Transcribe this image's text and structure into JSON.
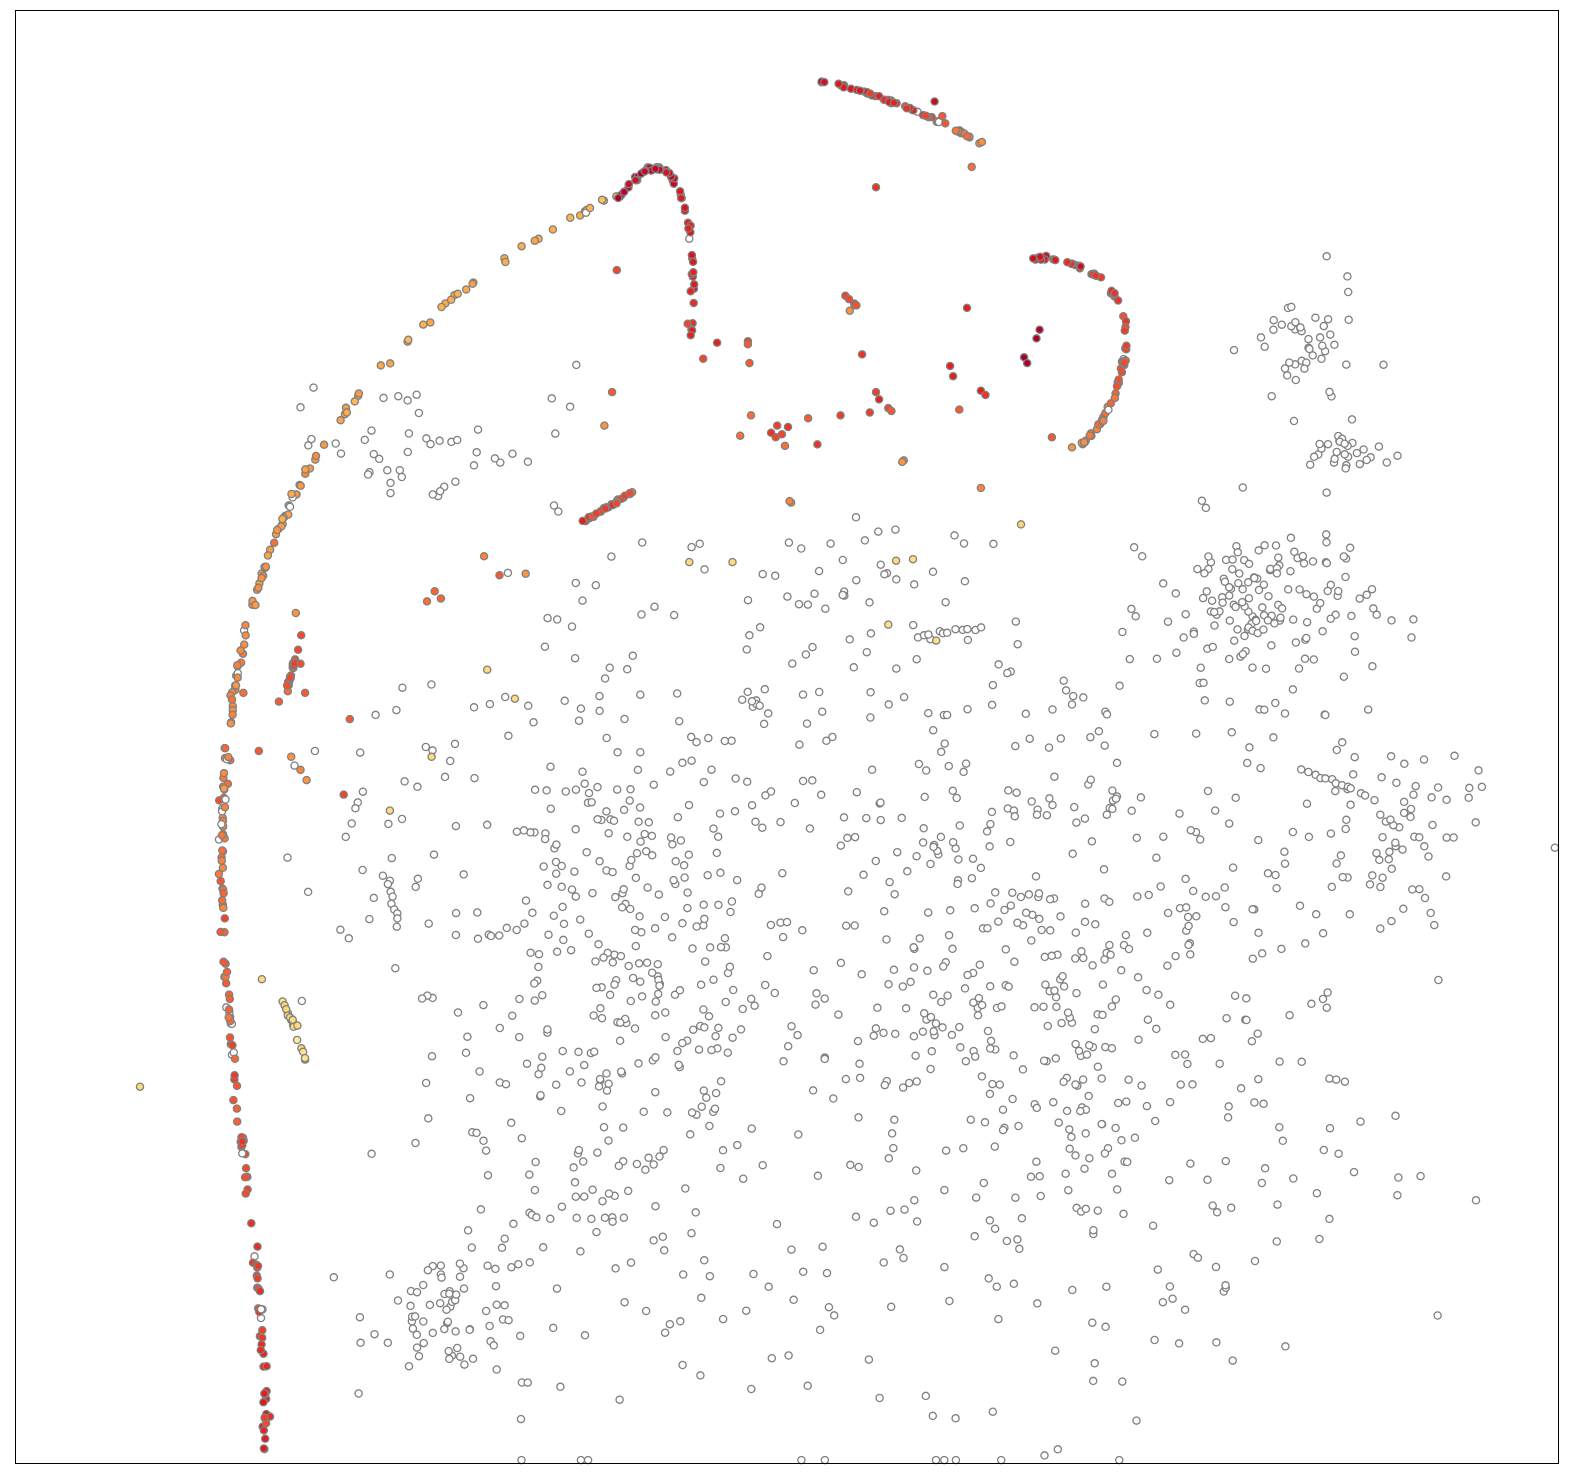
{
  "chart_data": {
    "type": "scatter",
    "title": "",
    "xlabel": "",
    "ylabel": "",
    "xlim": [
      0,
      1000
    ],
    "ylim": [
      0,
      1000
    ],
    "grid": false,
    "axis_ticks": false,
    "colors": {
      "edge": "#808080",
      "uncolored_fill": "#ffffff",
      "frame": "#000000",
      "colormap": [
        "#800026",
        "#bd0026",
        "#e31a1c",
        "#fc4e2a",
        "#fd8d3c",
        "#feb24c",
        "#fed976",
        "#ffeda0"
      ]
    },
    "colored_series": [
      {
        "name": "big-arc",
        "shape": "bezier",
        "points": [
          [
            162,
            9
          ],
          [
            170,
            260
          ],
          [
            5,
            680
          ],
          [
            395,
            875
          ]
        ],
        "n": 230,
        "jitter": 2.5,
        "c": [
          0.3,
          0.75
        ],
        "gaps": 0.1
      },
      {
        "name": "arc-top-right",
        "shape": "bezier",
        "points": [
          [
            392,
            870
          ],
          [
            420,
            920
          ],
          [
            445,
            880
          ],
          [
            438,
            773
          ]
        ],
        "n": 65,
        "jitter": 1.5,
        "c": [
          0.15,
          0.3
        ],
        "gaps": 0.04
      },
      {
        "name": "arc-upper",
        "shape": "bezier",
        "points": [
          [
            521,
            951
          ],
          [
            560,
            945
          ],
          [
            605,
            920
          ],
          [
            627,
            908
          ]
        ],
        "n": 55,
        "jitter": 1.2,
        "c": [
          0.2,
          0.55
        ],
        "gaps": 0.03
      },
      {
        "name": "arc-right",
        "shape": "bezier",
        "points": [
          [
            659,
            829
          ],
          [
            745,
            830
          ],
          [
            725,
            730
          ],
          [
            690,
            700
          ]
        ],
        "n": 75,
        "jitter": 1.5,
        "c": [
          0.25,
          0.55
        ],
        "gaps": 0.02
      },
      {
        "name": "seg-mid",
        "shape": "line",
        "points": [
          [
            367,
            647
          ],
          [
            400,
            668
          ]
        ],
        "n": 30,
        "jitter": 1.2,
        "c": [
          0.38,
          0.42
        ]
      },
      {
        "name": "seg-left",
        "shape": "line",
        "points": [
          [
            176,
            530
          ],
          [
            188,
            582
          ]
        ],
        "n": 20,
        "jitter": 1.2,
        "c": [
          0.4,
          0.43
        ]
      },
      {
        "name": "seg-small",
        "shape": "line",
        "points": [
          [
            538,
            803
          ],
          [
            545,
            797
          ]
        ],
        "n": 6,
        "jitter": 1.2,
        "c": [
          0.4,
          0.45
        ]
      },
      {
        "name": "seg-yellow",
        "shape": "line",
        "points": [
          [
            173,
            320
          ],
          [
            189,
            276
          ]
        ],
        "n": 16,
        "jitter": 1.2,
        "c": [
          0.86,
          0.92
        ]
      }
    ],
    "colored_points": [
      [
        390,
        821,
        0.4
      ],
      [
        387,
        737,
        0.45
      ],
      [
        382,
        714,
        0.6
      ],
      [
        446,
        760,
        0.4
      ],
      [
        436,
        784,
        0.4
      ],
      [
        455,
        771,
        0.3
      ],
      [
        541,
        793,
        0.6
      ],
      [
        520,
        701,
        0.35
      ],
      [
        549,
        763,
        0.35
      ],
      [
        503,
        661,
        0.55
      ],
      [
        502,
        662,
        0.55
      ],
      [
        499,
        700,
        0.5
      ],
      [
        493,
        706,
        0.4
      ],
      [
        490,
        709,
        0.35
      ],
      [
        494,
        714,
        0.38
      ],
      [
        497,
        708,
        0.4
      ],
      [
        501,
        713,
        0.35
      ],
      [
        514,
        719,
        0.45
      ],
      [
        535,
        721,
        0.38
      ],
      [
        554,
        723,
        0.38
      ],
      [
        558,
        737,
        0.38
      ],
      [
        560,
        732,
        0.3
      ],
      [
        566,
        726,
        0.4
      ],
      [
        568,
        724,
        0.45
      ],
      [
        576,
        690,
        0.55
      ],
      [
        575,
        689,
        0.6
      ],
      [
        606,
        755,
        0.3
      ],
      [
        617,
        795,
        0.3
      ],
      [
        626,
        738,
        0.3
      ],
      [
        629,
        735,
        0.35
      ],
      [
        608,
        748,
        0.3
      ],
      [
        612,
        725,
        0.45
      ],
      [
        664,
        780,
        0.12
      ],
      [
        654,
        761,
        0.08
      ],
      [
        662,
        774,
        0.1
      ],
      [
        656,
        757,
        0.1
      ],
      [
        672,
        706,
        0.45
      ],
      [
        685,
        699,
        0.6
      ],
      [
        626,
        671,
        0.55
      ],
      [
        652,
        646,
        0.85
      ],
      [
        571,
        621,
        0.88
      ],
      [
        582,
        622,
        0.9
      ],
      [
        566,
        577,
        0.92
      ],
      [
        597,
        566,
        0.92
      ],
      [
        437,
        620,
        0.88
      ],
      [
        465,
        620,
        0.88
      ],
      [
        304,
        624,
        0.55
      ],
      [
        314,
        611,
        0.45
      ],
      [
        331,
        612,
        0.6
      ],
      [
        267,
        593,
        0.5
      ],
      [
        276,
        595,
        0.48
      ],
      [
        272,
        600,
        0.48
      ],
      [
        182,
        585,
        0.6
      ],
      [
        148,
        530,
        0.5
      ],
      [
        185,
        550,
        0.42
      ],
      [
        188,
        530,
        0.45
      ],
      [
        171,
        524,
        0.45
      ],
      [
        158,
        490,
        0.45
      ],
      [
        179,
        486,
        0.6
      ],
      [
        185,
        477,
        0.55
      ],
      [
        189,
        470,
        0.6
      ],
      [
        217,
        512,
        0.45
      ],
      [
        213,
        460,
        0.4
      ],
      [
        306,
        546,
        0.88
      ],
      [
        243,
        449,
        0.88
      ],
      [
        270,
        486,
        0.88
      ],
      [
        324,
        526,
        0.88
      ],
      [
        160,
        333,
        0.88
      ],
      [
        81,
        259,
        0.88
      ],
      [
        180,
        305,
        0.88
      ],
      [
        183,
        301,
        0.88
      ],
      [
        558,
        878,
        0.35
      ],
      [
        601,
        927,
        0.45
      ],
      [
        620,
        892,
        0.5
      ],
      [
        596,
        937,
        0.2
      ],
      [
        475,
        772,
        0.38
      ],
      [
        475,
        770,
        0.45
      ],
      [
        470,
        707,
        0.5
      ],
      [
        477,
        721,
        0.5
      ],
      [
        476,
        757,
        0.45
      ]
    ],
    "uncolored_clusters": [
      {
        "name": "left-lower-mass",
        "cx": 390,
        "cy": 330,
        "rx": 120,
        "ry": 260,
        "n": 420
      },
      {
        "name": "left-lower-foot",
        "cx": 285,
        "cy": 105,
        "rx": 55,
        "ry": 45,
        "n": 70
      },
      {
        "name": "right-lower-mass",
        "cx": 660,
        "cy": 320,
        "rx": 220,
        "ry": 260,
        "n": 640
      },
      {
        "name": "right-upper-blob",
        "cx": 810,
        "cy": 590,
        "rx": 70,
        "ry": 60,
        "n": 150
      },
      {
        "name": "right-top-blob",
        "cx": 835,
        "cy": 765,
        "rx": 35,
        "ry": 45,
        "n": 45
      },
      {
        "name": "right-top-tail",
        "cx": 862,
        "cy": 695,
        "rx": 30,
        "ry": 18,
        "n": 30
      },
      {
        "name": "right-mid-arm",
        "cx": 890,
        "cy": 440,
        "rx": 55,
        "ry": 60,
        "n": 70
      },
      {
        "name": "upper-left-scatter",
        "cx": 265,
        "cy": 700,
        "rx": 90,
        "ry": 45,
        "n": 45
      },
      {
        "name": "mid-scatter",
        "cx": 520,
        "cy": 590,
        "rx": 90,
        "ry": 80,
        "n": 45
      },
      {
        "name": "left-sparse",
        "cx": 230,
        "cy": 420,
        "rx": 60,
        "ry": 110,
        "n": 30
      }
    ],
    "uncolored_lines": [
      {
        "name": "chain-left",
        "from": [
          240,
          405
        ],
        "to": [
          248,
          370
        ],
        "n": 10
      },
      {
        "name": "chain-mid",
        "from": [
          590,
          570
        ],
        "to": [
          625,
          574
        ],
        "n": 10
      },
      {
        "name": "chain-right",
        "from": [
          835,
          477
        ],
        "to": [
          875,
          460
        ],
        "n": 12
      }
    ]
  }
}
